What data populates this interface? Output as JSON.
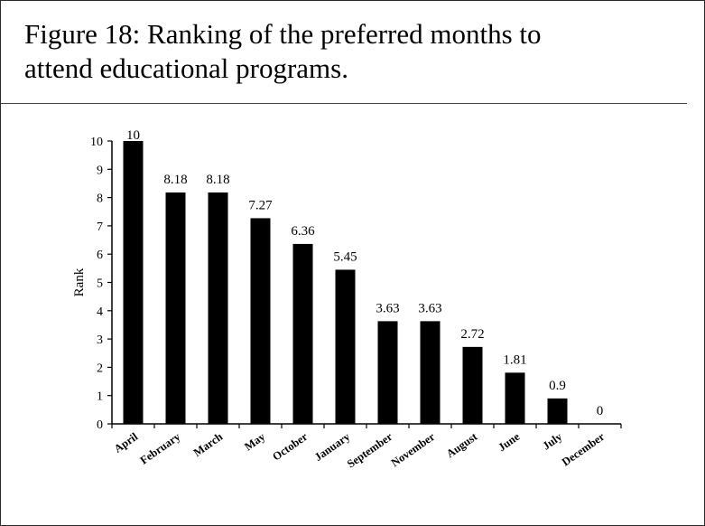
{
  "figure": {
    "caption_line1": "Figure 18:  Ranking of the preferred months to",
    "caption_line2": "attend educational programs."
  },
  "chart_data": {
    "type": "bar",
    "title": "",
    "xlabel": "",
    "ylabel": "Rank",
    "ylim": [
      0,
      10
    ],
    "yticks": [
      "0",
      "1",
      "2",
      "3",
      "4",
      "5",
      "6",
      "7",
      "8",
      "9",
      "10"
    ],
    "categories": [
      "April",
      "February",
      "March",
      "May",
      "October",
      "January",
      "September",
      "November",
      "August",
      "June",
      "July",
      "December"
    ],
    "values": [
      10,
      8.18,
      8.18,
      7.27,
      6.36,
      5.45,
      3.63,
      3.63,
      2.72,
      1.81,
      0.9,
      0
    ],
    "data_labels": [
      "10",
      "8.18",
      "8.18",
      "7.27",
      "6.36",
      "5.45",
      "3.63",
      "3.63",
      "2.72",
      "1.81",
      "0.9",
      "0"
    ],
    "bar_color": "#000000",
    "grid": false,
    "legend": "none"
  }
}
